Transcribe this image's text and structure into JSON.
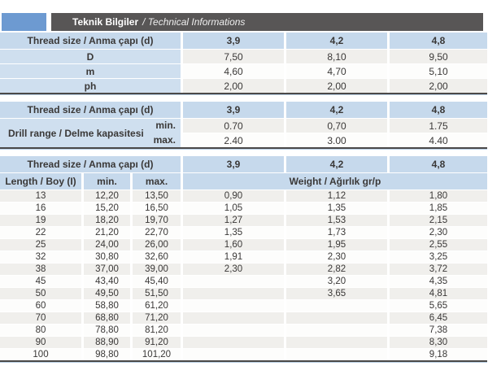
{
  "title_bar": {
    "title_tr": "Teknik Bilgiler",
    "title_en": "/ Technical Informations"
  },
  "colors": {
    "accent_square_blue": "#6d9ad1",
    "title_bar_dark": "#585656",
    "header_blue": "#c6d9ec",
    "label_blue": "#cfdfef",
    "row_gray": "#f0efec",
    "row_white": "#fdfdfc",
    "table_bottom_border": "#4b4948",
    "text": "#3a3837"
  },
  "table1": {
    "header": {
      "label": "Thread size / Anma çapı (d)",
      "cols": [
        "3,9",
        "4,2",
        "4,8"
      ]
    },
    "rows": [
      {
        "label": "D",
        "values": [
          "7,50",
          "8,10",
          "9,50"
        ]
      },
      {
        "label": "m",
        "values": [
          "4,60",
          "4,70",
          "5,10"
        ]
      },
      {
        "label": "ph",
        "values": [
          "2,00",
          "2,00",
          "2,00"
        ]
      }
    ]
  },
  "table2": {
    "header": {
      "label": "Thread size / Anma çapı (d)",
      "cols": [
        "3,9",
        "4,2",
        "4,8"
      ]
    },
    "row_label": "Drill range / Delme kapasitesi",
    "sub_rows": [
      {
        "label": "min.",
        "values": [
          "0.70",
          "0,70",
          "1.75"
        ]
      },
      {
        "label": "max.",
        "values": [
          "2.40",
          "3.00",
          "4.40"
        ]
      }
    ]
  },
  "table3": {
    "header": {
      "label": "Thread size / Anma çapı (d)",
      "cols": [
        "3,9",
        "4,2",
        "4,8"
      ]
    },
    "subheader": {
      "length": "Length / Boy (I)",
      "min": "min.",
      "max": "max.",
      "weight": "Weight / Ağırlık gr/p"
    },
    "rows": [
      {
        "length": "13",
        "min": "12,20",
        "max": "13,50",
        "w1": "0,90",
        "w2": "1,12",
        "w3": "1,80"
      },
      {
        "length": "16",
        "min": "15,20",
        "max": "16,50",
        "w1": "1,05",
        "w2": "1,35",
        "w3": "1,85"
      },
      {
        "length": "19",
        "min": "18,20",
        "max": "19,70",
        "w1": "1,27",
        "w2": "1,53",
        "w3": "2,15"
      },
      {
        "length": "22",
        "min": "21,20",
        "max": "22,70",
        "w1": "1,35",
        "w2": "1,73",
        "w3": "2,30"
      },
      {
        "length": "25",
        "min": "24,00",
        "max": "26,00",
        "w1": "1,60",
        "w2": "1,95",
        "w3": "2,55"
      },
      {
        "length": "32",
        "min": "30,80",
        "max": "32,60",
        "w1": "1,91",
        "w2": "2,30",
        "w3": "3,25"
      },
      {
        "length": "38",
        "min": "37,00",
        "max": "39,00",
        "w1": "2,30",
        "w2": "2,82",
        "w3": "3,72"
      },
      {
        "length": "45",
        "min": "43,40",
        "max": "45,40",
        "w1": "",
        "w2": "3,20",
        "w3": "4,35"
      },
      {
        "length": "50",
        "min": "49,50",
        "max": "51,50",
        "w1": "",
        "w2": "3,65",
        "w3": "4,81"
      },
      {
        "length": "60",
        "min": "58,80",
        "max": "61,20",
        "w1": "",
        "w2": "",
        "w3": "5,65"
      },
      {
        "length": "70",
        "min": "68,80",
        "max": "71,20",
        "w1": "",
        "w2": "",
        "w3": "6,45"
      },
      {
        "length": "80",
        "min": "78,80",
        "max": "81,20",
        "w1": "",
        "w2": "",
        "w3": "7,38"
      },
      {
        "length": "90",
        "min": "88,90",
        "max": "91,20",
        "w1": "",
        "w2": "",
        "w3": "8,30"
      },
      {
        "length": "100",
        "min": "98,80",
        "max": "101,20",
        "w1": "",
        "w2": "",
        "w3": "9,18"
      }
    ]
  }
}
